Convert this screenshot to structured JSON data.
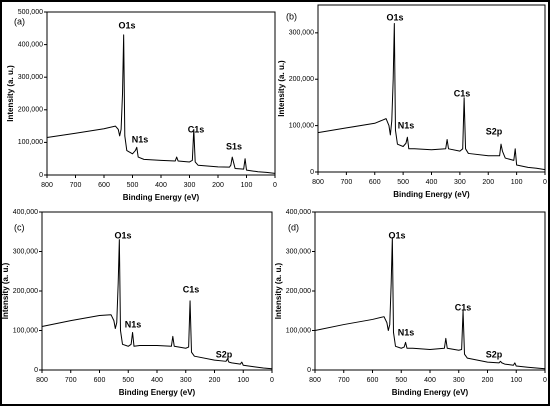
{
  "chart_data": [
    {
      "type": "line",
      "title": "(a)",
      "x_label": "Binding Energy (eV)",
      "y_label": "Intensity (a. u.)",
      "annotations": [
        "O1s",
        "N1s",
        "C1s",
        "S1s"
      ],
      "xlim": [
        800,
        0
      ],
      "xticks": [
        800,
        700,
        600,
        500,
        400,
        300,
        200,
        100,
        0
      ],
      "ylim": [
        0,
        500000
      ],
      "yticks": [
        0,
        {
          "value": 100000,
          "label": "100,000"
        },
        {
          "value": 200000,
          "label": "200,000"
        },
        {
          "value": 300000,
          "label": "300,000"
        },
        {
          "value": 400000,
          "label": "400,000"
        },
        {
          "value": 500000,
          "label": "500,000"
        }
      ],
      "x": [
        800,
        700,
        600,
        560,
        550,
        545,
        540,
        535,
        531,
        527,
        520,
        500,
        490,
        485,
        480,
        460,
        400,
        350,
        345,
        340,
        300,
        290,
        285,
        280,
        270,
        200,
        160,
        155,
        150,
        140,
        110,
        105,
        100,
        60,
        30,
        0
      ],
      "series": [
        {
          "color": "#000000",
          "values": [
            115000,
            128000,
            142000,
            150000,
            140000,
            120000,
            140000,
            250000,
            430000,
            120000,
            75000,
            65000,
            75000,
            85000,
            55000,
            48000,
            45000,
            43000,
            55000,
            43000,
            40000,
            45000,
            140000,
            40000,
            30000,
            25000,
            24000,
            30000,
            55000,
            20000,
            18000,
            50000,
            15000,
            10000,
            8000,
            5000
          ]
        }
      ]
    },
    {
      "type": "line",
      "title": "(b)",
      "x_label": "Binding Energy (eV)",
      "y_label": "Intensity (a. u.)",
      "annotations": [
        "O1s",
        "N1s",
        "C1s",
        "S2p"
      ],
      "xlim": [
        800,
        0
      ],
      "xticks": [
        800,
        700,
        600,
        500,
        400,
        300,
        200,
        100,
        0
      ],
      "ylim": [
        0,
        360000
      ],
      "yticks": [
        0,
        {
          "value": 100000,
          "label": "100,000"
        },
        {
          "value": 200000,
          "label": "200,000"
        },
        {
          "value": 300000,
          "label": "300,000"
        }
      ],
      "x": [
        800,
        700,
        600,
        560,
        550,
        545,
        540,
        535,
        531,
        527,
        520,
        500,
        490,
        485,
        480,
        460,
        400,
        350,
        345,
        340,
        300,
        290,
        285,
        280,
        270,
        200,
        160,
        155,
        150,
        140,
        110,
        105,
        100,
        60,
        30,
        0
      ],
      "series": [
        {
          "color": "#000000",
          "values": [
            85000,
            95000,
            105000,
            115000,
            100000,
            80000,
            110000,
            200000,
            320000,
            90000,
            60000,
            55000,
            62000,
            75000,
            50000,
            50000,
            48000,
            50000,
            70000,
            50000,
            45000,
            50000,
            160000,
            50000,
            40000,
            35000,
            35000,
            60000,
            45000,
            30000,
            25000,
            50000,
            15000,
            10000,
            8000,
            5000
          ]
        }
      ]
    },
    {
      "type": "line",
      "title": "(c)",
      "x_label": "Binding Energy (eV)",
      "y_label": "Intensity (a. u.)",
      "annotations": [
        "O1s",
        "N1s",
        "C1s",
        "S2p"
      ],
      "xlim": [
        800,
        0
      ],
      "xticks": [
        800,
        700,
        600,
        500,
        400,
        300,
        200,
        100,
        0
      ],
      "ylim": [
        0,
        400000
      ],
      "yticks": [
        0,
        {
          "value": 100000,
          "label": "100,000"
        },
        {
          "value": 200000,
          "label": "200,000"
        },
        {
          "value": 300000,
          "label": "300,000"
        },
        {
          "value": 400000,
          "label": "400,000"
        }
      ],
      "x": [
        800,
        700,
        600,
        560,
        550,
        545,
        540,
        535,
        531,
        527,
        520,
        500,
        490,
        485,
        480,
        460,
        400,
        350,
        345,
        340,
        300,
        290,
        285,
        280,
        270,
        200,
        160,
        155,
        150,
        140,
        110,
        105,
        100,
        60,
        30,
        0
      ],
      "series": [
        {
          "color": "#000000",
          "values": [
            110000,
            125000,
            138000,
            140000,
            125000,
            105000,
            120000,
            220000,
            330000,
            100000,
            65000,
            60000,
            65000,
            95000,
            60000,
            62000,
            62000,
            60000,
            85000,
            60000,
            55000,
            58000,
            175000,
            45000,
            35000,
            25000,
            22000,
            28000,
            20000,
            18000,
            15000,
            20000,
            12000,
            8000,
            5000,
            3000
          ]
        }
      ]
    },
    {
      "type": "line",
      "title": "(d)",
      "x_label": "Binding Energy (eV)",
      "y_label": "Intensity (a. u.)",
      "annotations": [
        "O1s",
        "N1s",
        "C1s",
        "S2p"
      ],
      "xlim": [
        800,
        0
      ],
      "xticks": [
        800,
        700,
        600,
        500,
        400,
        300,
        200,
        100,
        0
      ],
      "ylim": [
        0,
        400000
      ],
      "yticks": [
        0,
        {
          "value": 100000,
          "label": "100,000"
        },
        {
          "value": 200000,
          "label": "200,000"
        },
        {
          "value": 300000,
          "label": "300,000"
        },
        {
          "value": 400000,
          "label": "400,000"
        }
      ],
      "x": [
        800,
        700,
        600,
        560,
        550,
        545,
        540,
        535,
        531,
        527,
        520,
        500,
        490,
        485,
        480,
        460,
        400,
        350,
        345,
        340,
        300,
        290,
        285,
        280,
        270,
        200,
        160,
        155,
        150,
        140,
        110,
        105,
        100,
        60,
        30,
        0
      ],
      "series": [
        {
          "color": "#000000",
          "values": [
            100000,
            115000,
            128000,
            135000,
            120000,
            100000,
            115000,
            220000,
            335000,
            95000,
            60000,
            55000,
            58000,
            70000,
            55000,
            55000,
            52000,
            55000,
            80000,
            55000,
            50000,
            52000,
            150000,
            40000,
            30000,
            20000,
            18000,
            22000,
            18000,
            15000,
            12000,
            18000,
            10000,
            7000,
            5000,
            3000
          ]
        }
      ]
    }
  ]
}
